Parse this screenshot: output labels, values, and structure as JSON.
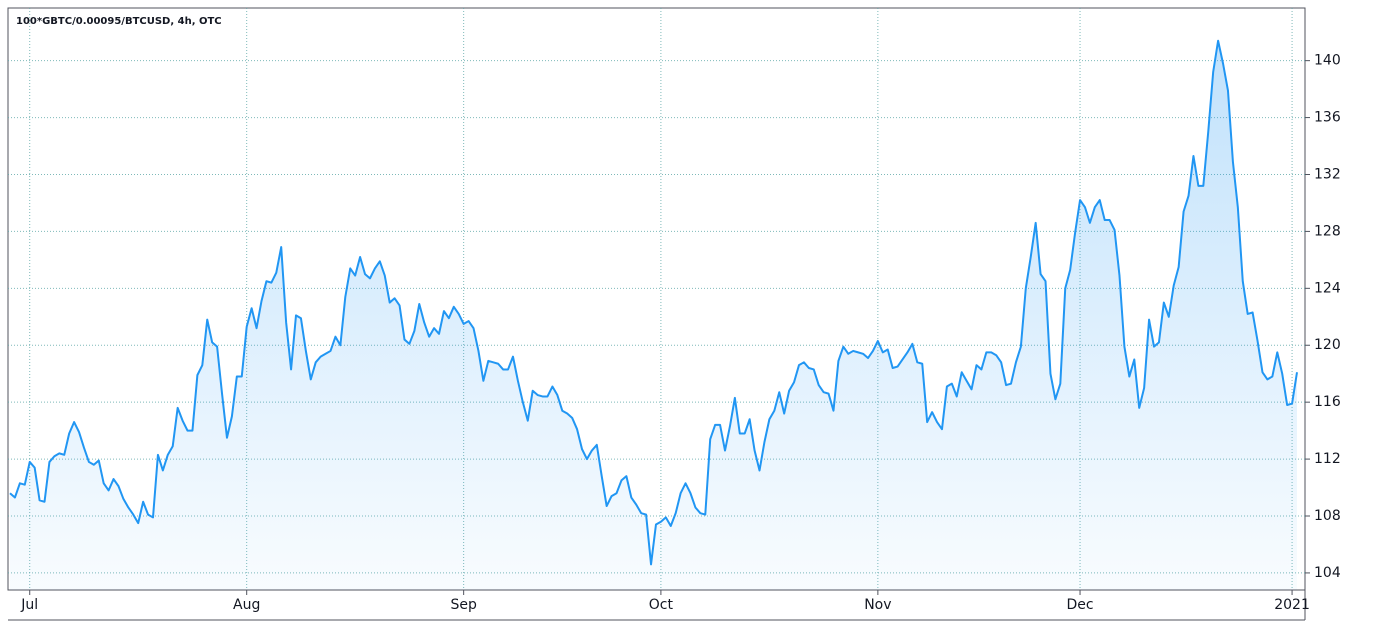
{
  "chart_data": {
    "type": "area",
    "title": "100*GBTC/0.00095/BTCUSD, 4h, OTC",
    "color": "#2196f3",
    "grid": true,
    "y_axis_side": "right",
    "ylim": [
      102.8,
      143.7
    ],
    "yticks": [
      104,
      108,
      112,
      116,
      120,
      124,
      128,
      132,
      136,
      140
    ],
    "categories": [
      null,
      null,
      null,
      null,
      "Jul",
      null,
      null,
      null,
      null,
      null,
      null,
      null,
      null,
      null,
      null,
      null,
      null,
      null,
      null,
      null,
      null,
      null,
      null,
      null,
      null,
      null,
      null,
      null,
      null,
      null,
      null,
      null,
      null,
      null,
      null,
      null,
      null,
      null,
      null,
      null,
      null,
      null,
      null,
      null,
      null,
      null,
      null,
      null,
      "Aug",
      null,
      null,
      null,
      null,
      null,
      null,
      null,
      null,
      null,
      null,
      null,
      null,
      null,
      null,
      null,
      null,
      null,
      null,
      null,
      null,
      null,
      null,
      null,
      null,
      null,
      null,
      null,
      null,
      null,
      null,
      null,
      null,
      null,
      null,
      null,
      null,
      null,
      null,
      null,
      null,
      null,
      null,
      null,
      "Sep",
      null,
      null,
      null,
      null,
      null,
      null,
      null,
      null,
      null,
      null,
      null,
      null,
      null,
      null,
      null,
      null,
      null,
      null,
      null,
      null,
      null,
      null,
      null,
      null,
      null,
      null,
      null,
      null,
      null,
      null,
      null,
      null,
      null,
      null,
      null,
      null,
      null,
      null,
      null,
      "Oct",
      null,
      null,
      null,
      null,
      null,
      null,
      null,
      null,
      null,
      null,
      null,
      null,
      null,
      null,
      null,
      null,
      null,
      null,
      null,
      null,
      null,
      null,
      null,
      null,
      null,
      null,
      null,
      null,
      null,
      null,
      null,
      null,
      null,
      null,
      null,
      null,
      null,
      null,
      null,
      null,
      null,
      null,
      null,
      "Nov",
      null,
      null,
      null,
      null,
      null,
      null,
      null,
      null,
      null,
      null,
      null,
      null,
      null,
      null,
      null,
      null,
      null,
      null,
      null,
      null,
      null,
      null,
      null,
      null,
      null,
      null,
      null,
      null,
      null,
      null,
      null,
      null,
      null,
      null,
      null,
      null,
      null,
      null,
      null,
      null,
      "Dec",
      null,
      null,
      null,
      null,
      null,
      null,
      null,
      null,
      null,
      null,
      null,
      null,
      null,
      null,
      null,
      null,
      null,
      null,
      null,
      null,
      null,
      null,
      null,
      null,
      null,
      null,
      null,
      null,
      null,
      null,
      null,
      null,
      null,
      null,
      null,
      null,
      null,
      null,
      null,
      null,
      null,
      null,
      "2021",
      null
    ],
    "values": [
      109.6,
      109.3,
      110.3,
      110.2,
      111.8,
      111.4,
      109.1,
      109.0,
      111.8,
      112.2,
      112.4,
      112.3,
      113.8,
      114.6,
      113.9,
      112.8,
      111.8,
      111.6,
      111.9,
      110.3,
      109.8,
      110.6,
      110.1,
      109.2,
      108.6,
      108.1,
      107.5,
      109.0,
      108.1,
      107.9,
      112.3,
      111.2,
      112.3,
      112.9,
      115.6,
      114.7,
      114.0,
      114.0,
      117.9,
      118.6,
      121.8,
      120.2,
      119.9,
      116.6,
      113.5,
      115.0,
      117.8,
      117.8,
      121.3,
      122.6,
      121.2,
      123.1,
      124.5,
      124.4,
      125.1,
      126.9,
      121.6,
      118.3,
      122.1,
      121.9,
      119.6,
      117.6,
      118.8,
      119.2,
      119.4,
      119.6,
      120.6,
      120.0,
      123.4,
      125.4,
      124.9,
      126.2,
      125.0,
      124.7,
      125.4,
      125.9,
      124.9,
      123.0,
      123.3,
      122.8,
      120.4,
      120.1,
      121.0,
      122.9,
      121.6,
      120.6,
      121.2,
      120.8,
      122.4,
      121.9,
      122.7,
      122.2,
      121.5,
      121.7,
      121.2,
      119.6,
      117.5,
      118.9,
      118.8,
      118.7,
      118.3,
      118.3,
      119.2,
      117.5,
      116.0,
      114.7,
      116.8,
      116.5,
      116.4,
      116.4,
      117.1,
      116.5,
      115.4,
      115.2,
      114.9,
      114.1,
      112.7,
      112.0,
      112.6,
      113.0,
      110.8,
      108.7,
      109.4,
      109.6,
      110.5,
      110.8,
      109.3,
      108.8,
      108.2,
      108.1,
      104.6,
      107.4,
      107.6,
      107.9,
      107.3,
      108.2,
      109.6,
      110.3,
      109.6,
      108.6,
      108.2,
      108.1,
      113.4,
      114.4,
      114.4,
      112.6,
      114.3,
      116.3,
      113.8,
      113.8,
      114.8,
      112.6,
      111.2,
      113.2,
      114.8,
      115.4,
      116.7,
      115.2,
      116.8,
      117.4,
      118.6,
      118.8,
      118.4,
      118.3,
      117.2,
      116.7,
      116.6,
      115.4,
      118.9,
      119.9,
      119.4,
      119.6,
      119.5,
      119.4,
      119.1,
      119.6,
      120.3,
      119.5,
      119.7,
      118.4,
      118.5,
      119.0,
      119.5,
      120.1,
      118.8,
      118.7,
      114.6,
      115.3,
      114.6,
      114.1,
      117.1,
      117.3,
      116.4,
      118.1,
      117.5,
      116.9,
      118.6,
      118.3,
      119.5,
      119.5,
      119.3,
      118.8,
      117.2,
      117.3,
      118.8,
      119.9,
      124.0,
      126.2,
      128.6,
      125.0,
      124.5,
      118.0,
      116.2,
      117.3,
      124.0,
      125.3,
      127.9,
      130.2,
      129.7,
      128.6,
      129.7,
      130.2,
      128.8,
      128.8,
      128.1,
      124.9,
      119.9,
      117.8,
      119.0,
      115.6,
      117.0,
      121.8,
      119.9,
      120.2,
      123.0,
      122.0,
      124.2,
      125.5,
      129.4,
      130.5,
      133.3,
      131.2,
      131.2,
      135.0,
      139.2,
      141.4,
      139.8,
      137.9,
      132.9,
      129.7,
      124.5,
      122.2,
      122.3,
      120.3,
      118.1,
      117.6,
      117.8,
      119.5,
      118.0,
      115.8,
      115.9,
      118.1
    ]
  }
}
